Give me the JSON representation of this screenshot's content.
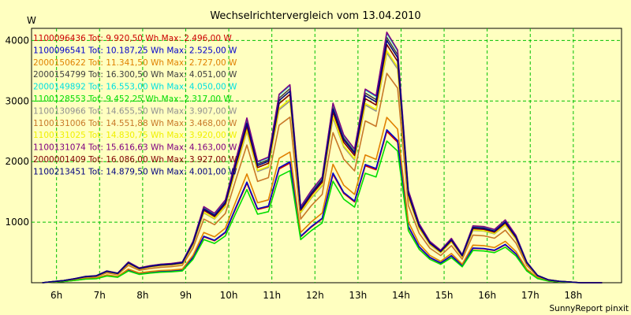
{
  "chart_data": {
    "type": "line",
    "title": "Wechselrichtervergleich vom 13.04.2010",
    "ylabel": "W",
    "xlabel": "",
    "xlim": [
      5.42,
      19.12
    ],
    "ylim": [
      0,
      4200
    ],
    "yticks": [
      1000,
      2000,
      3000,
      4000
    ],
    "xticks": [
      {
        "value": 6,
        "label": "6h"
      },
      {
        "value": 7,
        "label": "7h"
      },
      {
        "value": 8,
        "label": "8h"
      },
      {
        "value": 9,
        "label": "9h"
      },
      {
        "value": 10,
        "label": "10h"
      },
      {
        "value": 11,
        "label": "11h"
      },
      {
        "value": 12,
        "label": "12h"
      },
      {
        "value": 13,
        "label": "13h"
      },
      {
        "value": 14,
        "label": "14h"
      },
      {
        "value": 15,
        "label": "15h"
      },
      {
        "value": 16,
        "label": "16h"
      },
      {
        "value": 17,
        "label": "17h"
      },
      {
        "value": 18,
        "label": "18h"
      }
    ],
    "grid": true,
    "legend_position": "top-left",
    "x": [
      5.67,
      5.92,
      6.17,
      6.42,
      6.67,
      6.92,
      7.17,
      7.42,
      7.67,
      7.92,
      8.17,
      8.42,
      8.67,
      8.92,
      9.17,
      9.42,
      9.67,
      9.92,
      10.17,
      10.42,
      10.67,
      10.92,
      11.17,
      11.42,
      11.67,
      11.92,
      12.17,
      12.42,
      12.67,
      12.92,
      13.17,
      13.42,
      13.67,
      13.92,
      14.17,
      14.42,
      14.67,
      14.92,
      15.17,
      15.42,
      15.67,
      15.92,
      16.17,
      16.42,
      16.67,
      16.92,
      17.17,
      17.42,
      17.67,
      17.92,
      18.17,
      18.42,
      18.67
    ],
    "base_profile": [
      0,
      15,
      30,
      55,
      85,
      95,
      160,
      130,
      280,
      200,
      230,
      250,
      260,
      280,
      560,
      1030,
      940,
      1120,
      1680,
      2230,
      1640,
      1700,
      2550,
      2680,
      1030,
      1250,
      1430,
      2430,
      2000,
      1810,
      2620,
      2530,
      3390,
      3150,
      1250,
      800,
      560,
      440,
      600,
      380,
      770,
      760,
      720,
      850,
      640,
      280,
      100,
      40,
      20,
      10,
      0,
      0,
      0
    ],
    "series": [
      {
        "name": "1100096436 Tot: 9.920,50 Wh Max: 2.496,00 W",
        "color": "#cc0000",
        "scale": 0.737
      },
      {
        "name": "1100096541 Tot: 10.187,25 Wh Max: 2.525,00 W",
        "color": "#0000cc",
        "scale": 0.745
      },
      {
        "name": "2000150622 Tot: 11.341,50 Wh Max: 2.727,00 W",
        "color": "#e08000",
        "scale": 0.805
      },
      {
        "name": "2000154799 Tot: 16.300,50 Wh Max: 4.051,00 W",
        "color": "#404040",
        "scale": 1.195
      },
      {
        "name": "2000149892 Tot: 16.553,00 Wh Max: 4.050,00 W",
        "color": "#00e0e0",
        "scale": 1.215
      },
      {
        "name": "1100128553 Tot: 9.452,25 Wh Max: 2.317,00 W",
        "color": "#00dd00",
        "scale": 0.69
      },
      {
        "name": "1100130966 Tot: 14.655,50 Wh Max: 3.907,00 W",
        "color": "#909090",
        "scale": 1.12
      },
      {
        "name": "1100131006 Tot: 14.551,88 Wh Max: 3.468,00 W",
        "color": "#c87828",
        "scale": 1.02
      },
      {
        "name": "1100131025 Tot: 14.830,75 Wh Max: 3.920,00 W",
        "color": "#f0f000",
        "scale": 1.13
      },
      {
        "name": "1100131074 Tot: 15.616,63 Wh Max: 4.163,00 W",
        "color": "#800080",
        "scale": 1.22
      },
      {
        "name": "2000001409 Tot: 16.086,00 Wh Max: 3.927,00 W",
        "color": "#800000",
        "scale": 1.16
      },
      {
        "name": "1100213451 Tot: 14.879,50 Wh Max: 4.001,00 W",
        "color": "#000080",
        "scale": 1.18
      }
    ]
  },
  "footer": "SunnyReport pinxit"
}
